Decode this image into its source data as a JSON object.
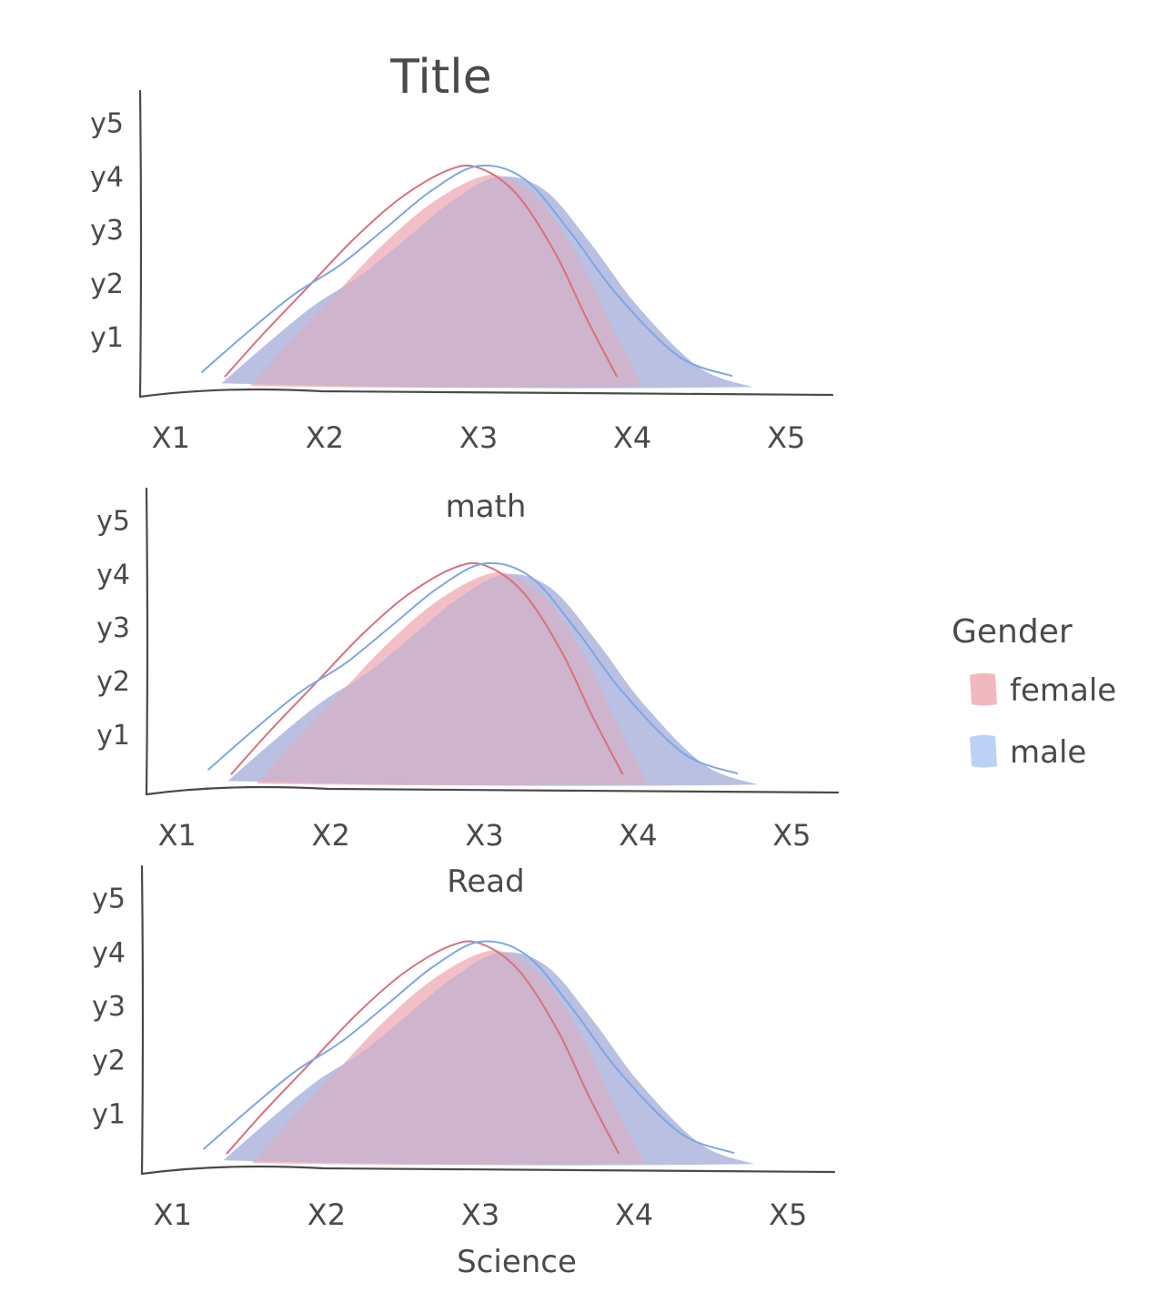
{
  "title": "Title",
  "legend": {
    "title": "Gender",
    "items": [
      {
        "label": "female",
        "fill_color": "#f2b8c0"
      },
      {
        "label": "male",
        "fill_color": "#bcd2f5"
      }
    ]
  },
  "colors": {
    "female_fill": "#f2b8c0",
    "male_fill": "#bcd2f5",
    "overlap_fill": "#b4aed2",
    "female_line": "#d9707e",
    "male_line": "#7ea6e6",
    "axis": "#4a4a4a"
  },
  "chart_data": [
    {
      "type": "area",
      "xlabel": "math",
      "x_tick_labels": [
        "X1",
        "X2",
        "X3",
        "X4",
        "X5"
      ],
      "y_tick_labels": [
        "y1",
        "y2",
        "y3",
        "y4",
        "y5"
      ],
      "xlim": [
        0.8,
        5.3
      ],
      "ylim": [
        0,
        5.6
      ],
      "legend_position": "right",
      "series": [
        {
          "name": "female",
          "x": [
            1.35,
            1.6,
            1.9,
            2.2,
            2.5,
            2.8,
            3.0,
            3.25,
            3.5,
            3.7,
            3.9
          ],
          "y": [
            0.1,
            0.9,
            1.8,
            2.7,
            3.45,
            3.95,
            4.0,
            3.5,
            2.4,
            1.2,
            0.1
          ]
        },
        {
          "name": "male",
          "x": [
            1.2,
            1.5,
            1.8,
            2.1,
            2.4,
            2.7,
            3.0,
            3.3,
            3.6,
            3.9,
            4.3,
            4.65
          ],
          "y": [
            0.15,
            0.9,
            1.6,
            2.15,
            2.85,
            3.55,
            4.0,
            3.75,
            2.75,
            1.6,
            0.45,
            0.08
          ]
        }
      ]
    },
    {
      "type": "area",
      "xlabel": "Read",
      "x_tick_labels": [
        "X1",
        "X2",
        "X3",
        "X4",
        "X5"
      ],
      "y_tick_labels": [
        "y1",
        "y2",
        "y3",
        "y4",
        "y5"
      ],
      "xlim": [
        0.8,
        5.3
      ],
      "ylim": [
        0,
        5.6
      ],
      "series": [
        {
          "name": "female",
          "x": [
            1.35,
            1.6,
            1.9,
            2.2,
            2.5,
            2.8,
            3.0,
            3.25,
            3.5,
            3.7,
            3.9
          ],
          "y": [
            0.1,
            0.9,
            1.8,
            2.7,
            3.45,
            3.95,
            4.0,
            3.5,
            2.4,
            1.2,
            0.1
          ]
        },
        {
          "name": "male",
          "x": [
            1.2,
            1.5,
            1.8,
            2.1,
            2.4,
            2.7,
            3.0,
            3.3,
            3.6,
            3.9,
            4.3,
            4.65
          ],
          "y": [
            0.15,
            0.9,
            1.6,
            2.15,
            2.85,
            3.55,
            4.0,
            3.75,
            2.75,
            1.6,
            0.45,
            0.08
          ]
        }
      ]
    },
    {
      "type": "area",
      "xlabel": "Science",
      "x_tick_labels": [
        "X1",
        "X2",
        "X3",
        "X4",
        "X5"
      ],
      "y_tick_labels": [
        "y1",
        "y2",
        "y3",
        "y4",
        "y5"
      ],
      "xlim": [
        0.8,
        5.3
      ],
      "ylim": [
        0,
        5.6
      ],
      "series": [
        {
          "name": "female",
          "x": [
            1.35,
            1.6,
            1.9,
            2.2,
            2.5,
            2.8,
            3.0,
            3.25,
            3.5,
            3.7,
            3.9
          ],
          "y": [
            0.1,
            0.9,
            1.8,
            2.7,
            3.45,
            3.95,
            4.0,
            3.5,
            2.4,
            1.2,
            0.1
          ]
        },
        {
          "name": "male",
          "x": [
            1.2,
            1.5,
            1.8,
            2.1,
            2.4,
            2.7,
            3.0,
            3.3,
            3.6,
            3.9,
            4.3,
            4.65
          ],
          "y": [
            0.15,
            0.9,
            1.6,
            2.15,
            2.85,
            3.55,
            4.0,
            3.75,
            2.75,
            1.6,
            0.45,
            0.08
          ]
        }
      ]
    }
  ]
}
